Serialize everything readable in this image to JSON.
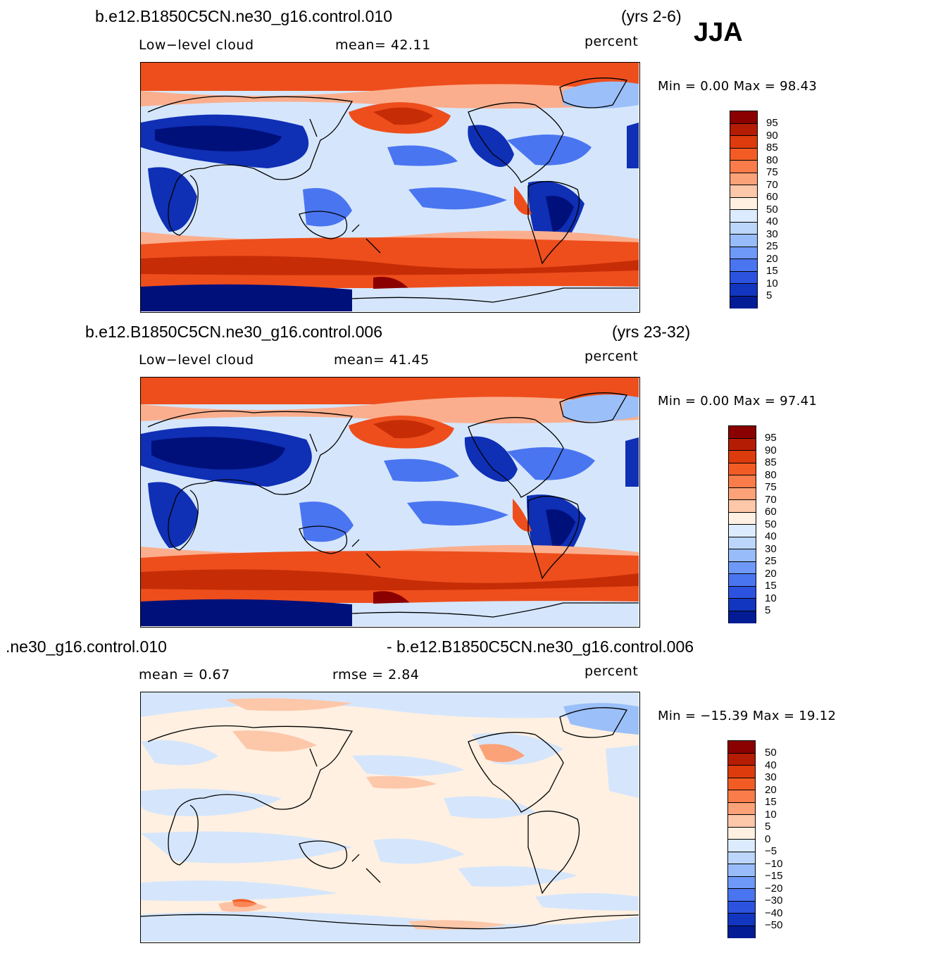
{
  "season": "JJA",
  "panels": [
    {
      "case_title": "b.e12.B1850C5CN.ne30_g16.control.010",
      "years": "(yrs 2-6)",
      "left_label": "Low−level cloud",
      "center_label": "mean=   42.11",
      "units": "percent",
      "min_text": "Min =    0.00 Max =   98.43",
      "colorbar_labels": [
        "95",
        "90",
        "85",
        "80",
        "75",
        "70",
        "60",
        "50",
        "40",
        "30",
        "25",
        "20",
        "15",
        "10",
        "5"
      ],
      "palette": [
        "#8b0000",
        "#b51c04",
        "#dd3b0d",
        "#f25c24",
        "#f97c4a",
        "#fba279",
        "#fdc7a9",
        "#fff0e1",
        "#dcebfd",
        "#bcd6fb",
        "#98bcfa",
        "#6e99f8",
        "#4a75f1",
        "#2c53e0",
        "#1236c0",
        "#031c95"
      ]
    },
    {
      "case_title": "b.e12.B1850C5CN.ne30_g16.control.006",
      "years": "(yrs 23-32)",
      "left_label": "Low−level cloud",
      "center_label": "mean=   41.45",
      "units": "percent",
      "min_text": "Min =    0.00 Max =   97.41",
      "colorbar_labels": [
        "95",
        "90",
        "85",
        "80",
        "75",
        "70",
        "60",
        "50",
        "40",
        "30",
        "25",
        "20",
        "15",
        "10",
        "5"
      ],
      "palette": [
        "#8b0000",
        "#b51c04",
        "#dd3b0d",
        "#f25c24",
        "#f97c4a",
        "#fba279",
        "#fdc7a9",
        "#fff0e1",
        "#dcebfd",
        "#bcd6fb",
        "#98bcfa",
        "#6e99f8",
        "#4a75f1",
        "#2c53e0",
        "#1236c0",
        "#031c95"
      ]
    },
    {
      "case_title": ".ne30_g16.control.010",
      "case_title_right": "- b.e12.B1850C5CN.ne30_g16.control.006",
      "left_label": "mean =    0.67",
      "center_label": "rmse =    2.84",
      "units": "percent",
      "min_text": "Min = −15.39 Max =   19.12",
      "colorbar_labels": [
        "50",
        "40",
        "30",
        "20",
        "15",
        "10",
        "5",
        "0",
        "−5",
        "−10",
        "−15",
        "−20",
        "−30",
        "−40",
        "−50"
      ],
      "palette": [
        "#8b0000",
        "#b51c04",
        "#dd3b0d",
        "#f25c24",
        "#f97c4a",
        "#fba279",
        "#fdc7a9",
        "#fff0e1",
        "#dcebfd",
        "#bcd6fb",
        "#98bcfa",
        "#6e99f8",
        "#4a75f1",
        "#2c53e0",
        "#1236c0",
        "#031c95"
      ]
    }
  ],
  "colors": {
    "deep_red": "#c62d07",
    "red": "#ee4e1c",
    "light_red": "#fbae8d",
    "cream": "#fff0e1",
    "pale_blue": "#d5e6fc",
    "light_blue": "#9bbff9",
    "mid_blue": "#4a75f1",
    "dark_blue": "#0f2fb5",
    "navy": "#00107a",
    "coast": "#000000"
  }
}
